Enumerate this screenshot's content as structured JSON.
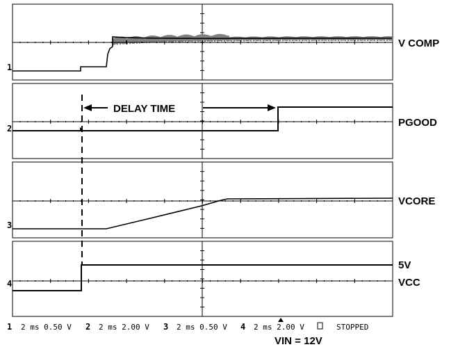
{
  "chart_data": {
    "type": "line",
    "panels": [
      {
        "channel": "1",
        "label": "V COMP",
        "label2": ""
      },
      {
        "channel": "2",
        "label": "PGOOD",
        "label2": ""
      },
      {
        "channel": "3",
        "label": "VCORE",
        "label2": ""
      },
      {
        "channel": "4",
        "label": "5V",
        "label2": "VCC"
      }
    ],
    "annotation": "DELAY TIME",
    "status_bar": {
      "ch1": {
        "num": "1",
        "text": "2 ms 0.50 V"
      },
      "ch2": {
        "num": "2",
        "text": "2 ms 2.00 V"
      },
      "ch3": {
        "num": "3",
        "text": "2 ms 0.50 V"
      },
      "ch4": {
        "num": "4",
        "text": "2 ms 2.00 V"
      },
      "state": "STOPPED"
    },
    "footer": "VIN = 12V",
    "colors": {
      "trace": "#000000",
      "grid": "#000000",
      "background": "#ffffff"
    }
  }
}
